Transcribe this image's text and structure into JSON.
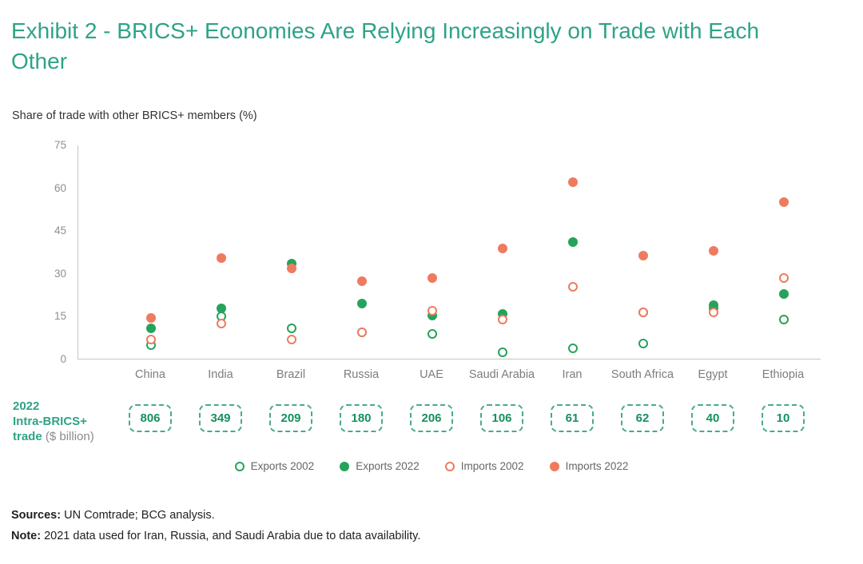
{
  "title": "Exhibit 2 - BRICS+ Economies Are Relying Increasingly on Trade with Each Other",
  "chart_data": {
    "type": "scatter",
    "title": "Exhibit 2 - BRICS+ Economies Are Relying Increasingly on Trade with Each Other",
    "ylabel": "Share of trade with other BRICS+ members (%)",
    "xlabel": "",
    "ylim": [
      0,
      75
    ],
    "yticks": [
      0,
      15,
      30,
      45,
      60,
      75
    ],
    "grid": false,
    "legend_position": "bottom",
    "categories": [
      "China",
      "India",
      "Brazil",
      "Russia",
      "UAE",
      "Saudi Arabia",
      "Iran",
      "South Africa",
      "Egypt",
      "Ethiopia"
    ],
    "series": [
      {
        "name": "Exports 2002",
        "style": "open",
        "color": "#27a25b",
        "values": [
          5,
          15,
          11,
          9.5,
          9,
          2.5,
          4,
          5.5,
          18,
          14
        ]
      },
      {
        "name": "Exports 2022",
        "style": "filled",
        "color": "#27a25b",
        "values": [
          11,
          18,
          33.5,
          19.5,
          15.5,
          16,
          41,
          16.5,
          19,
          23
        ]
      },
      {
        "name": "Imports 2002",
        "style": "open",
        "color": "#ee7b5f",
        "values": [
          7,
          12.5,
          7,
          9.5,
          17,
          14,
          25.5,
          16.5,
          16.5,
          28.5
        ]
      },
      {
        "name": "Imports 2022",
        "style": "filled",
        "color": "#ee7b5f",
        "values": [
          14.5,
          35.5,
          32,
          27.5,
          28.5,
          39,
          62,
          36.5,
          38,
          55
        ]
      }
    ]
  },
  "trade_row": {
    "label_line1": "2022",
    "label_line2": "Intra-BRICS+",
    "label_line3": "trade",
    "label_unit": "($ billion)",
    "values": [
      "806",
      "349",
      "209",
      "180",
      "206",
      "106",
      "61",
      "62",
      "40",
      "10"
    ]
  },
  "legend": [
    {
      "label": "Exports 2002",
      "style": "open",
      "color": "#27a25b"
    },
    {
      "label": "Exports 2022",
      "style": "filled",
      "color": "#27a25b"
    },
    {
      "label": "Imports 2002",
      "style": "open",
      "color": "#ee7b5f"
    },
    {
      "label": "Imports 2022",
      "style": "filled",
      "color": "#ee7b5f"
    }
  ],
  "footer": {
    "sources_label": "Sources:",
    "sources_text": " UN Comtrade; BCG analysis.",
    "note_label": "Note:",
    "note_text": " 2021 data used for Iran, Russia, and Saudi Arabia due to data availability."
  },
  "colors": {
    "title_green": "#2ea386",
    "dot_green": "#27a25b",
    "dot_orange": "#ee7b5f",
    "axis_gray": "#c6c6c6"
  }
}
